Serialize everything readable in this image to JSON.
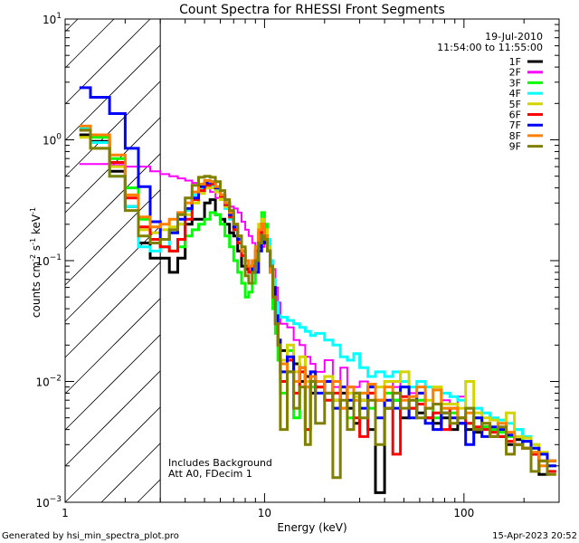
{
  "chart_data": {
    "type": "line",
    "title": "Count Spectra for RHESSI Front Segments",
    "xlabel": "Energy (keV)",
    "ylabel": {
      "base": "counts cm",
      "e1": "-2",
      "mid": " s",
      "e2": "-1",
      "mid2": " keV",
      "e3": "-1"
    },
    "xscale": "log",
    "yscale": "log",
    "xlim": [
      1,
      300
    ],
    "ylim": [
      0.001,
      10
    ],
    "xticks": [
      {
        "v": 1,
        "label": "1"
      },
      {
        "v": 10,
        "label": "10"
      },
      {
        "v": 100,
        "label": "100"
      }
    ],
    "yticks": [
      {
        "v": 10,
        "base": "10",
        "exp": "1"
      },
      {
        "v": 1,
        "base": "10",
        "exp": "0"
      },
      {
        "v": 0.1,
        "base": "10",
        "exp": "−1"
      },
      {
        "v": 0.01,
        "base": "10",
        "exp": "−2"
      },
      {
        "v": 0.001,
        "base": "10",
        "exp": "−3"
      }
    ],
    "excluded_region_keV": [
      1,
      3
    ],
    "legend": {
      "position": "top-right",
      "date": "19-Jul-2010",
      "time_range": "11:54:00 to 11:55:00"
    },
    "annotations": [
      "Includes Background",
      "Att A0, FDecim 1"
    ],
    "energy_edges": [
      1.18,
      1.34,
      1.67,
      2,
      2.33,
      2.67,
      3,
      3.33,
      3.67,
      4,
      4.33,
      4.67,
      5,
      5.33,
      5.67,
      6,
      6.33,
      6.67,
      7,
      7.33,
      7.67,
      8,
      8.33,
      8.67,
      9,
      9.33,
      9.67,
      10,
      10.33,
      10.67,
      11,
      11.33,
      11.67,
      12,
      13,
      14,
      15,
      16,
      17,
      18,
      20,
      22,
      24,
      26,
      28,
      30,
      33,
      36,
      40,
      44,
      48,
      53,
      58,
      64,
      70,
      77,
      85,
      93,
      102,
      112,
      123,
      135,
      148,
      163,
      179,
      197,
      217,
      238,
      262,
      290
    ],
    "series": [
      {
        "name": "1F",
        "color": "#000000",
        "values": [
          1.1,
          0.97,
          0.55,
          0.28,
          0.14,
          0.105,
          0.105,
          0.08,
          0.105,
          0.2,
          0.22,
          0.22,
          0.3,
          0.32,
          0.24,
          0.22,
          0.2,
          0.17,
          0.16,
          0.12,
          0.09,
          0.085,
          0.08,
          0.08,
          0.1,
          0.13,
          0.17,
          0.15,
          0.12,
          0.09,
          0.05,
          0.03,
          0.02,
          0.018,
          0.012,
          0.014,
          0.01,
          0.011,
          0.008,
          0.009,
          0.01,
          0.007,
          0.008,
          0.006,
          0.0045,
          0.007,
          0.004,
          0.0012,
          0.006,
          0.007,
          0.005,
          0.006,
          0.0055,
          0.005,
          0.0045,
          0.005,
          0.004,
          0.0045,
          0.004,
          0.0038,
          0.0042,
          0.0035,
          0.0035,
          0.003,
          0.0033,
          0.0028,
          0.0025,
          0.0017,
          0.0022
        ]
      },
      {
        "name": "2F",
        "color": "#ff00ff",
        "values": [
          0.63,
          0.63,
          0.62,
          0.6,
          0.6,
          0.55,
          0.52,
          0.5,
          0.48,
          0.46,
          0.44,
          0.42,
          0.4,
          0.37,
          0.33,
          0.32,
          0.3,
          0.28,
          0.27,
          0.25,
          0.21,
          0.18,
          0.16,
          0.14,
          0.13,
          0.12,
          0.13,
          0.15,
          0.13,
          0.1,
          0.085,
          0.06,
          0.045,
          0.03,
          0.028,
          0.022,
          0.02,
          0.016,
          0.014,
          0.012,
          0.015,
          0.009,
          0.013,
          0.008,
          0.009,
          0.01,
          0.008,
          0.009,
          0.01,
          0.009,
          0.012,
          0.008,
          0.009,
          0.007,
          0.0085,
          0.007,
          0.0065,
          0.0075,
          0.006,
          0.0055,
          0.005,
          0.0048,
          0.0045,
          0.0045,
          0.004,
          0.0035,
          0.003,
          0.0025,
          0.002
        ]
      },
      {
        "name": "3F",
        "color": "#00ff00",
        "values": [
          1.25,
          1.05,
          0.7,
          0.4,
          0.22,
          0.15,
          0.13,
          0.12,
          0.13,
          0.16,
          0.18,
          0.2,
          0.22,
          0.25,
          0.24,
          0.2,
          0.16,
          0.13,
          0.1,
          0.08,
          0.065,
          0.05,
          0.055,
          0.065,
          0.1,
          0.15,
          0.25,
          0.2,
          0.15,
          0.08,
          0.04,
          0.025,
          0.015,
          0.008,
          0.018,
          0.005,
          0.012,
          0.004,
          0.009,
          0.01,
          0.008,
          0.006,
          0.009,
          0.005,
          0.007,
          0.008,
          0.006,
          0.007,
          0.008,
          0.007,
          0.009,
          0.006,
          0.007,
          0.006,
          0.005,
          0.006,
          0.0055,
          0.005,
          0.0045,
          0.005,
          0.0042,
          0.004,
          0.0038,
          0.0035,
          0.004,
          0.0032,
          0.0028,
          0.0025,
          0.002
        ]
      },
      {
        "name": "4F",
        "color": "#00ffff",
        "values": [
          1.25,
          0.95,
          0.5,
          0.28,
          0.13,
          0.12,
          0.13,
          0.17,
          0.2,
          0.26,
          0.35,
          0.4,
          0.43,
          0.42,
          0.38,
          0.33,
          0.27,
          0.22,
          0.18,
          0.15,
          0.12,
          0.1,
          0.09,
          0.09,
          0.11,
          0.14,
          0.2,
          0.18,
          0.15,
          0.1,
          0.07,
          0.045,
          0.035,
          0.034,
          0.032,
          0.03,
          0.028,
          0.026,
          0.024,
          0.025,
          0.022,
          0.02,
          0.016,
          0.015,
          0.017,
          0.013,
          0.011,
          0.012,
          0.011,
          0.012,
          0.01,
          0.009,
          0.01,
          0.009,
          0.0085,
          0.008,
          0.0075,
          0.007,
          0.006,
          0.006,
          0.0055,
          0.005,
          0.0048,
          0.0045,
          0.004,
          0.0035,
          0.003,
          0.0025,
          0.0018
        ]
      },
      {
        "name": "5F",
        "color": "#d4d400",
        "values": [
          1.05,
          0.85,
          0.6,
          0.35,
          0.18,
          0.17,
          0.18,
          0.19,
          0.2,
          0.24,
          0.3,
          0.36,
          0.4,
          0.4,
          0.37,
          0.32,
          0.28,
          0.23,
          0.19,
          0.15,
          0.12,
          0.1,
          0.09,
          0.1,
          0.13,
          0.2,
          0.22,
          0.18,
          0.13,
          0.09,
          0.06,
          0.035,
          0.022,
          0.015,
          0.02,
          0.012,
          0.016,
          0.01,
          0.012,
          0.009,
          0.011,
          0.007,
          0.009,
          0.008,
          0.0075,
          0.007,
          0.008,
          0.009,
          0.01,
          0.01,
          0.012,
          0.007,
          0.008,
          0.007,
          0.009,
          0.0065,
          0.0065,
          0.006,
          0.01,
          0.0055,
          0.005,
          0.0048,
          0.004,
          0.0055,
          0.0035,
          0.0034,
          0.003,
          0.0026,
          0.002
        ]
      },
      {
        "name": "6F",
        "color": "#ff0000",
        "values": [
          1.2,
          1.1,
          0.65,
          0.33,
          0.19,
          0.15,
          0.13,
          0.12,
          0.15,
          0.22,
          0.32,
          0.38,
          0.42,
          0.43,
          0.4,
          0.34,
          0.29,
          0.23,
          0.18,
          0.14,
          0.11,
          0.09,
          0.08,
          0.09,
          0.12,
          0.17,
          0.2,
          0.16,
          0.12,
          0.08,
          0.05,
          0.03,
          0.02,
          0.01,
          0.015,
          0.008,
          0.012,
          0.004,
          0.011,
          0.009,
          0.007,
          0.008,
          0.006,
          0.009,
          0.005,
          0.0035,
          0.008,
          0.007,
          0.006,
          0.0025,
          0.0075,
          0.006,
          0.0065,
          0.005,
          0.0055,
          0.004,
          0.006,
          0.005,
          0.0045,
          0.0042,
          0.004,
          0.0038,
          0.0035,
          0.0032,
          0.003,
          0.0028,
          0.0025,
          0.0022,
          0.0018
        ]
      },
      {
        "name": "7F",
        "color": "#0000ff",
        "values": [
          2.7,
          2.25,
          1.65,
          0.85,
          0.41,
          0.21,
          0.15,
          0.17,
          0.22,
          0.27,
          0.33,
          0.41,
          0.44,
          0.45,
          0.4,
          0.35,
          0.3,
          0.24,
          0.19,
          0.15,
          0.12,
          0.1,
          0.09,
          0.08,
          0.08,
          0.12,
          0.16,
          0.14,
          0.12,
          0.09,
          0.06,
          0.035,
          0.022,
          0.012,
          0.016,
          0.01,
          0.013,
          0.009,
          0.012,
          0.008,
          0.01,
          0.006,
          0.009,
          0.007,
          0.008,
          0.006,
          0.009,
          0.005,
          0.007,
          0.006,
          0.009,
          0.005,
          0.008,
          0.0045,
          0.004,
          0.0055,
          0.005,
          0.0045,
          0.003,
          0.005,
          0.0035,
          0.0042,
          0.004,
          0.0036,
          0.003,
          0.0032,
          0.0028,
          0.0025,
          0.002
        ]
      },
      {
        "name": "8F",
        "color": "#ff8000",
        "values": [
          1.3,
          1.1,
          0.75,
          0.35,
          0.23,
          0.19,
          0.2,
          0.22,
          0.25,
          0.3,
          0.37,
          0.43,
          0.46,
          0.45,
          0.41,
          0.35,
          0.3,
          0.25,
          0.2,
          0.16,
          0.12,
          0.1,
          0.09,
          0.1,
          0.13,
          0.18,
          0.2,
          0.16,
          0.12,
          0.08,
          0.05,
          0.03,
          0.02,
          0.014,
          0.012,
          0.01,
          0.013,
          0.009,
          0.011,
          0.01,
          0.008,
          0.01,
          0.006,
          0.009,
          0.007,
          0.008,
          0.0095,
          0.007,
          0.009,
          0.008,
          0.007,
          0.0075,
          0.009,
          0.006,
          0.0085,
          0.006,
          0.006,
          0.005,
          0.0055,
          0.004,
          0.0045,
          0.0035,
          0.0045,
          0.0038,
          0.003,
          0.0028,
          0.0026,
          0.002,
          0.0022
        ]
      },
      {
        "name": "9F",
        "color": "#808000",
        "values": [
          1.2,
          0.85,
          0.5,
          0.26,
          0.16,
          0.14,
          0.15,
          0.18,
          0.24,
          0.33,
          0.42,
          0.49,
          0.5,
          0.49,
          0.45,
          0.38,
          0.32,
          0.26,
          0.2,
          0.16,
          0.13,
          0.075,
          0.065,
          0.08,
          0.1,
          0.14,
          0.16,
          0.15,
          0.12,
          0.09,
          0.05,
          0.03,
          0.02,
          0.004,
          0.012,
          0.006,
          0.009,
          0.003,
          0.01,
          0.0045,
          0.008,
          0.0016,
          0.007,
          0.004,
          0.008,
          0.005,
          0.007,
          0.003,
          0.006,
          0.008,
          0.006,
          0.007,
          0.005,
          0.006,
          0.0065,
          0.0055,
          0.0045,
          0.005,
          0.006,
          0.004,
          0.0045,
          0.0035,
          0.0042,
          0.0025,
          0.003,
          0.0028,
          0.0018,
          0.0022,
          0.0017
        ]
      }
    ]
  },
  "footer": {
    "generated_by": "Generated by hsi_min_spectra_plot.pro",
    "timestamp": "15-Apr-2023 20:52"
  }
}
